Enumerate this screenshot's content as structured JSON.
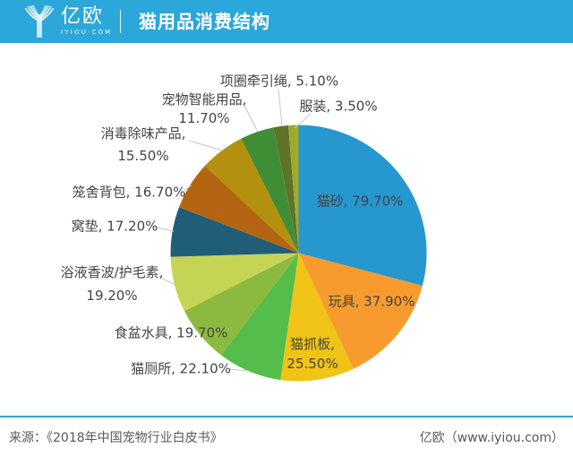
{
  "header": {
    "brand": "亿欧",
    "brand_sub": "IYIOU·COM",
    "title": "猫用品消费结构",
    "bar_color": "#2BA7D9"
  },
  "chart_data": {
    "type": "pie",
    "title": "猫用品消费结构",
    "value_suffix": "%",
    "label_style": "name, value%",
    "legend_position": "none",
    "labels": [
      "猫砂",
      "玩具",
      "猫抓板",
      "猫厕所",
      "食盆水具",
      "浴液香波/护毛素",
      "窝垫",
      "笼舍背包",
      "消毒除味产品",
      "宠物智能用品",
      "项圈牵引绳",
      "服装"
    ],
    "values": [
      79.7,
      37.9,
      25.5,
      22.1,
      19.7,
      19.2,
      17.2,
      16.7,
      15.5,
      11.7,
      5.1,
      3.5
    ],
    "colors": [
      "#2697CF",
      "#F89B2E",
      "#F0C317",
      "#55BD4A",
      "#8CBA3E",
      "#C5D455",
      "#205E78",
      "#B56511",
      "#B3910F",
      "#3F8E35",
      "#5F7429",
      "#9EAA28"
    ]
  },
  "footer": {
    "source": "来源：《2018年中国宠物行业白皮书》",
    "credit": "亿欧（www.iyiou.com）"
  }
}
